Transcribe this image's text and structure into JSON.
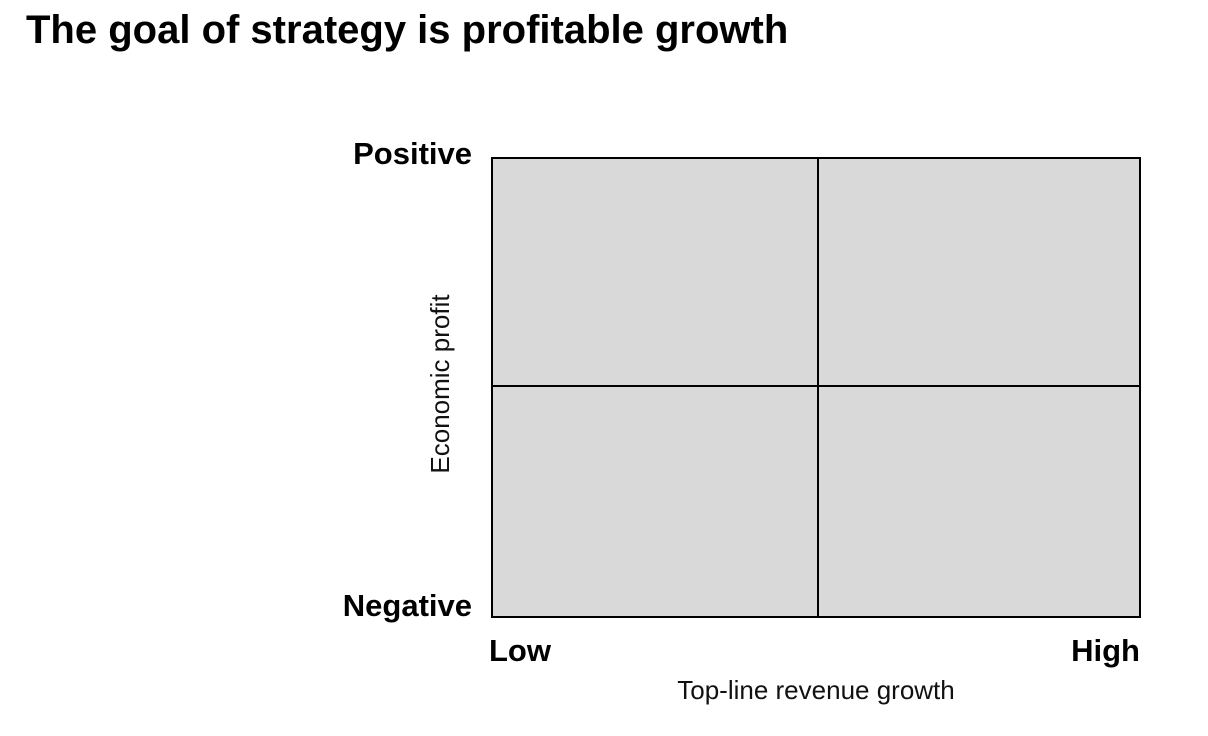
{
  "title": "The goal of strategy is profitable growth",
  "matrix": {
    "y_axis": {
      "label": "Economic profit",
      "top_label": "Positive",
      "bottom_label": "Negative"
    },
    "x_axis": {
      "label": "Top-line revenue growth",
      "left_label": "Low",
      "right_label": "High"
    },
    "quadrant_fill": "#d9d9d9",
    "line_color": "#000000"
  }
}
